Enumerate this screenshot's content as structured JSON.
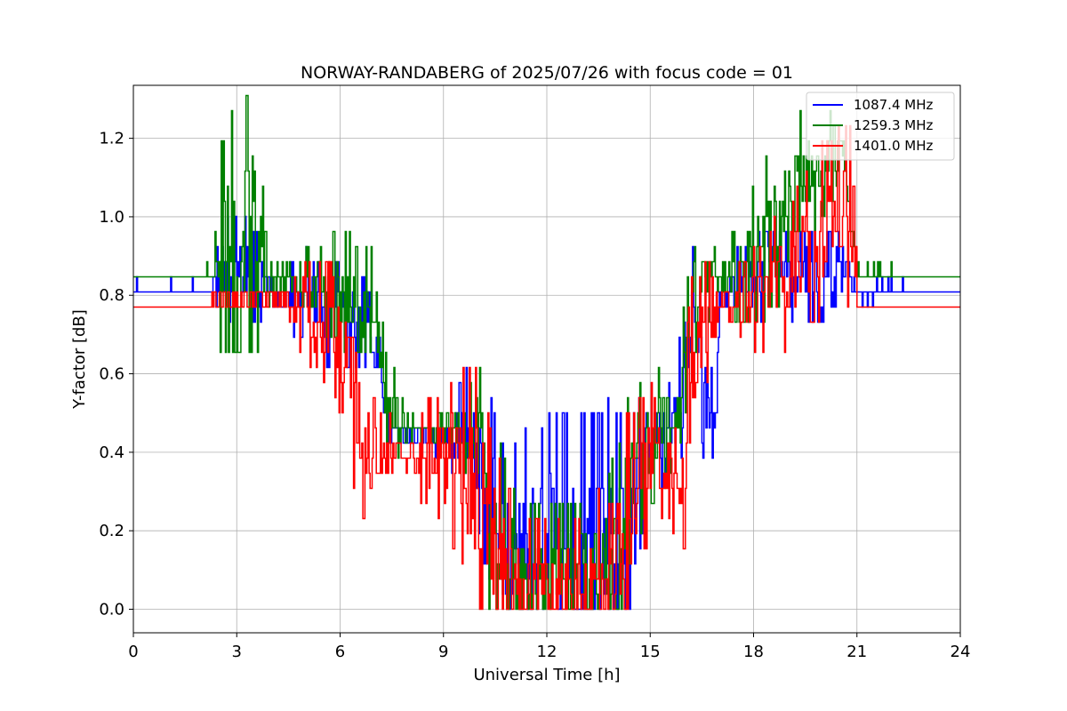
{
  "chart_data": {
    "type": "line",
    "title": "NORWAY-RANDABERG of 2025/07/26 with focus code = 01",
    "xlabel": "Universal Time [h]",
    "ylabel": "Y-factor [dB]",
    "xlim": [
      0,
      24
    ],
    "ylim": [
      -0.06,
      1.335
    ],
    "xticks": [
      0,
      3,
      6,
      9,
      12,
      15,
      18,
      21,
      24
    ],
    "xtick_labels": [
      "0",
      "3",
      "6",
      "9",
      "12",
      "15",
      "18",
      "21",
      "24"
    ],
    "yticks": [
      0.0,
      0.2,
      0.4,
      0.6,
      0.8,
      1.0,
      1.2
    ],
    "ytick_labels": [
      "0.0",
      "0.2",
      "0.4",
      "0.6",
      "0.8",
      "1.0",
      "1.2"
    ],
    "grid": true,
    "legend_position": "top-right",
    "series": [
      {
        "name": "1087.4 MHz",
        "color": "#0000ff",
        "base": [
          [
            0,
            0.81
          ],
          [
            2.2,
            0.81
          ],
          [
            2.4,
            0.86
          ],
          [
            3.0,
            0.86
          ],
          [
            4.0,
            0.82
          ],
          [
            4.3,
            0.78
          ],
          [
            5.0,
            0.8
          ],
          [
            5.6,
            0.76
          ],
          [
            6.3,
            0.74
          ],
          [
            6.8,
            0.72
          ],
          [
            7.2,
            0.62
          ],
          [
            7.3,
            0.46
          ],
          [
            7.8,
            0.44
          ],
          [
            8.5,
            0.44
          ],
          [
            9.3,
            0.44
          ],
          [
            10.0,
            0.42
          ],
          [
            10.5,
            0.24
          ],
          [
            10.9,
            0.1
          ],
          [
            11.4,
            0.16
          ],
          [
            12.0,
            0.16
          ],
          [
            12.6,
            0.16
          ],
          [
            13.2,
            0.14
          ],
          [
            13.6,
            0.16
          ],
          [
            14.0,
            0.16
          ],
          [
            14.4,
            0.26
          ],
          [
            14.9,
            0.42
          ],
          [
            15.5,
            0.46
          ],
          [
            16.0,
            0.55
          ],
          [
            16.2,
            0.75
          ],
          [
            16.6,
            0.53
          ],
          [
            16.9,
            0.5
          ],
          [
            17.0,
            0.8
          ],
          [
            17.5,
            0.82
          ],
          [
            18.0,
            0.84
          ],
          [
            18.5,
            0.86
          ],
          [
            19.0,
            0.86
          ],
          [
            19.4,
            0.86
          ],
          [
            19.8,
            0.84
          ],
          [
            20.2,
            0.86
          ],
          [
            20.6,
            0.86
          ],
          [
            21.0,
            0.81
          ],
          [
            24,
            0.81
          ]
        ],
        "noise": [
          [
            0,
            0.02
          ],
          [
            2.2,
            0.02
          ],
          [
            2.4,
            0.06
          ],
          [
            3.2,
            0.08
          ],
          [
            4.0,
            0.04
          ],
          [
            6.0,
            0.08
          ],
          [
            7.3,
            0.04
          ],
          [
            9.0,
            0.04
          ],
          [
            10.0,
            0.12
          ],
          [
            11.0,
            0.16
          ],
          [
            12.0,
            0.18
          ],
          [
            13.0,
            0.2
          ],
          [
            14.0,
            0.2
          ],
          [
            14.5,
            0.12
          ],
          [
            15.5,
            0.06
          ],
          [
            16.0,
            0.1
          ],
          [
            16.5,
            0.1
          ],
          [
            17.0,
            0.04
          ],
          [
            18.0,
            0.06
          ],
          [
            19.0,
            0.06
          ],
          [
            20.0,
            0.07
          ],
          [
            21.0,
            0.03
          ],
          [
            24,
            0.01
          ]
        ]
      },
      {
        "name": "1259.3 MHz",
        "color": "#008000",
        "base": [
          [
            0,
            0.85
          ],
          [
            2.4,
            0.85
          ],
          [
            2.5,
            0.92
          ],
          [
            3.0,
            0.98
          ],
          [
            3.5,
            0.96
          ],
          [
            3.9,
            0.86
          ],
          [
            4.2,
            0.85
          ],
          [
            5.0,
            0.82
          ],
          [
            5.5,
            0.82
          ],
          [
            6.2,
            0.8
          ],
          [
            6.6,
            0.74
          ],
          [
            7.1,
            0.7
          ],
          [
            7.3,
            0.5
          ],
          [
            7.8,
            0.47
          ],
          [
            8.5,
            0.46
          ],
          [
            9.4,
            0.46
          ],
          [
            10.0,
            0.44
          ],
          [
            10.4,
            0.24
          ],
          [
            10.9,
            0.1
          ],
          [
            11.5,
            0.08
          ],
          [
            12.5,
            0.08
          ],
          [
            13.5,
            0.1
          ],
          [
            14.0,
            0.14
          ],
          [
            14.4,
            0.32
          ],
          [
            14.8,
            0.42
          ],
          [
            15.3,
            0.46
          ],
          [
            16.0,
            0.55
          ],
          [
            16.2,
            0.8
          ],
          [
            16.5,
            0.84
          ],
          [
            17.0,
            0.84
          ],
          [
            17.5,
            0.86
          ],
          [
            18.0,
            0.9
          ],
          [
            18.5,
            0.96
          ],
          [
            19.0,
            1.02
          ],
          [
            19.4,
            1.1
          ],
          [
            19.8,
            1.14
          ],
          [
            20.2,
            1.16
          ],
          [
            20.6,
            1.16
          ],
          [
            21.0,
            0.85
          ],
          [
            24,
            0.85
          ]
        ],
        "noise": [
          [
            0,
            0.01
          ],
          [
            2.3,
            0.02
          ],
          [
            2.5,
            0.14
          ],
          [
            3.0,
            0.18
          ],
          [
            3.5,
            0.18
          ],
          [
            3.9,
            0.06
          ],
          [
            4.2,
            0.03
          ],
          [
            5.0,
            0.05
          ],
          [
            6.0,
            0.08
          ],
          [
            7.0,
            0.12
          ],
          [
            7.4,
            0.08
          ],
          [
            8.0,
            0.04
          ],
          [
            9.5,
            0.03
          ],
          [
            10.3,
            0.16
          ],
          [
            11.0,
            0.12
          ],
          [
            12.0,
            0.1
          ],
          [
            13.0,
            0.1
          ],
          [
            14.0,
            0.14
          ],
          [
            14.5,
            0.12
          ],
          [
            15.5,
            0.08
          ],
          [
            16.0,
            0.12
          ],
          [
            17.0,
            0.04
          ],
          [
            18.0,
            0.1
          ],
          [
            19.0,
            0.12
          ],
          [
            20.0,
            0.08
          ],
          [
            21.0,
            0.02
          ],
          [
            24,
            0.01
          ]
        ]
      },
      {
        "name": "1401.0 MHz",
        "color": "#ff0000",
        "base": [
          [
            0,
            0.77
          ],
          [
            2.1,
            0.77
          ],
          [
            2.4,
            0.79
          ],
          [
            3.0,
            0.79
          ],
          [
            4.0,
            0.79
          ],
          [
            5.0,
            0.76
          ],
          [
            5.6,
            0.72
          ],
          [
            6.2,
            0.66
          ],
          [
            6.5,
            0.5
          ],
          [
            6.9,
            0.39
          ],
          [
            7.3,
            0.39
          ],
          [
            8.0,
            0.39
          ],
          [
            9.0,
            0.39
          ],
          [
            9.5,
            0.38
          ],
          [
            10.0,
            0.28
          ],
          [
            10.5,
            0.14
          ],
          [
            10.9,
            0.04
          ],
          [
            11.5,
            0.03
          ],
          [
            12.0,
            0.03
          ],
          [
            12.5,
            0.03
          ],
          [
            13.0,
            0.03
          ],
          [
            13.5,
            0.05
          ],
          [
            14.0,
            0.16
          ],
          [
            14.6,
            0.3
          ],
          [
            15.0,
            0.38
          ],
          [
            16.0,
            0.39
          ],
          [
            16.2,
            0.62
          ],
          [
            16.6,
            0.72
          ],
          [
            17.0,
            0.77
          ],
          [
            17.5,
            0.77
          ],
          [
            18.0,
            0.79
          ],
          [
            18.5,
            0.82
          ],
          [
            19.0,
            0.85
          ],
          [
            19.5,
            0.92
          ],
          [
            20.0,
            0.97
          ],
          [
            20.5,
            1.0
          ],
          [
            20.95,
            1.0
          ],
          [
            21.0,
            0.77
          ],
          [
            24,
            0.77
          ]
        ],
        "noise": [
          [
            0,
            0.01
          ],
          [
            2.0,
            0.01
          ],
          [
            2.4,
            0.03
          ],
          [
            4.0,
            0.03
          ],
          [
            5.0,
            0.06
          ],
          [
            6.0,
            0.1
          ],
          [
            6.5,
            0.14
          ],
          [
            7.2,
            0.06
          ],
          [
            8.0,
            0.04
          ],
          [
            9.0,
            0.1
          ],
          [
            10.0,
            0.18
          ],
          [
            11.0,
            0.14
          ],
          [
            12.0,
            0.1
          ],
          [
            13.0,
            0.12
          ],
          [
            14.0,
            0.18
          ],
          [
            14.6,
            0.12
          ],
          [
            15.5,
            0.08
          ],
          [
            16.0,
            0.14
          ],
          [
            16.7,
            0.08
          ],
          [
            17.0,
            0.03
          ],
          [
            18.0,
            0.07
          ],
          [
            19.0,
            0.1
          ],
          [
            20.0,
            0.12
          ],
          [
            20.9,
            0.12
          ],
          [
            21.0,
            0.01
          ],
          [
            24,
            0.01
          ]
        ]
      }
    ]
  }
}
